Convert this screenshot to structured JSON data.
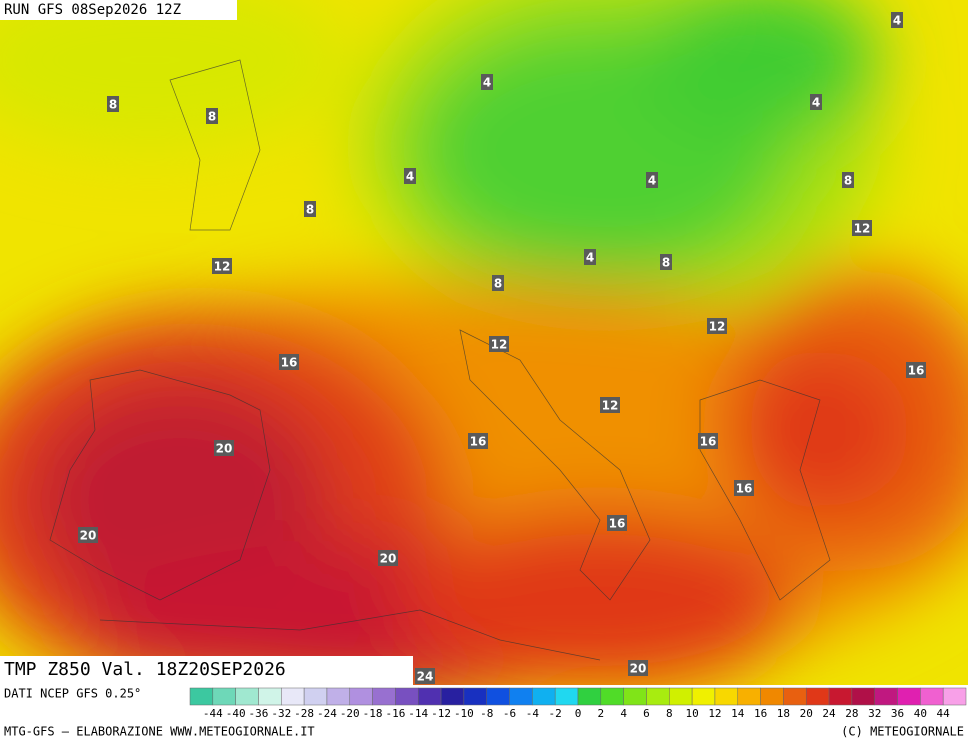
{
  "header": {
    "run": "RUN GFS 08Sep2026 12Z"
  },
  "map": {
    "contour_labels": [
      4,
      8,
      8,
      4,
      4,
      4,
      4,
      8,
      8,
      12,
      12,
      4,
      8,
      8,
      12,
      12,
      16,
      16,
      12,
      20,
      16,
      16,
      16,
      16,
      20,
      20,
      20,
      24
    ]
  },
  "footer": {
    "title": "TMP Z850 Val. 18Z20SEP2026",
    "source": "DATI NCEP GFS 0.25°",
    "credit": "MTG-GFS — ELABORAZIONE WWW.METEOGIORNALE.IT",
    "copyright": "(C) METEOGIORNALE"
  },
  "colorbar": {
    "ticks": [
      -44,
      -40,
      -36,
      -32,
      -28,
      -24,
      -20,
      -18,
      -16,
      -14,
      -12,
      -10,
      -8,
      -6,
      -4,
      -2,
      0,
      2,
      4,
      6,
      8,
      10,
      12,
      14,
      16,
      18,
      20,
      24,
      28,
      32,
      36,
      40,
      44
    ],
    "colors": [
      "#3cc8a0",
      "#6ed8b8",
      "#a0e8d0",
      "#d0f4e8",
      "#e8e8f8",
      "#d0d0f0",
      "#c0b0e8",
      "#b090e0",
      "#9870d0",
      "#7850c0",
      "#5030b0",
      "#2820a0",
      "#1830c0",
      "#1050e0",
      "#1080f0",
      "#10b0f0",
      "#20d8f0",
      "#30d040",
      "#50dc28",
      "#80e418",
      "#a8ec10",
      "#d0f000",
      "#f0f000",
      "#f8d800",
      "#f8b000",
      "#f08800",
      "#e86010",
      "#e03818",
      "#c81830",
      "#b01048",
      "#c01880",
      "#e020b0",
      "#f060d0",
      "#f8a0e8"
    ]
  }
}
